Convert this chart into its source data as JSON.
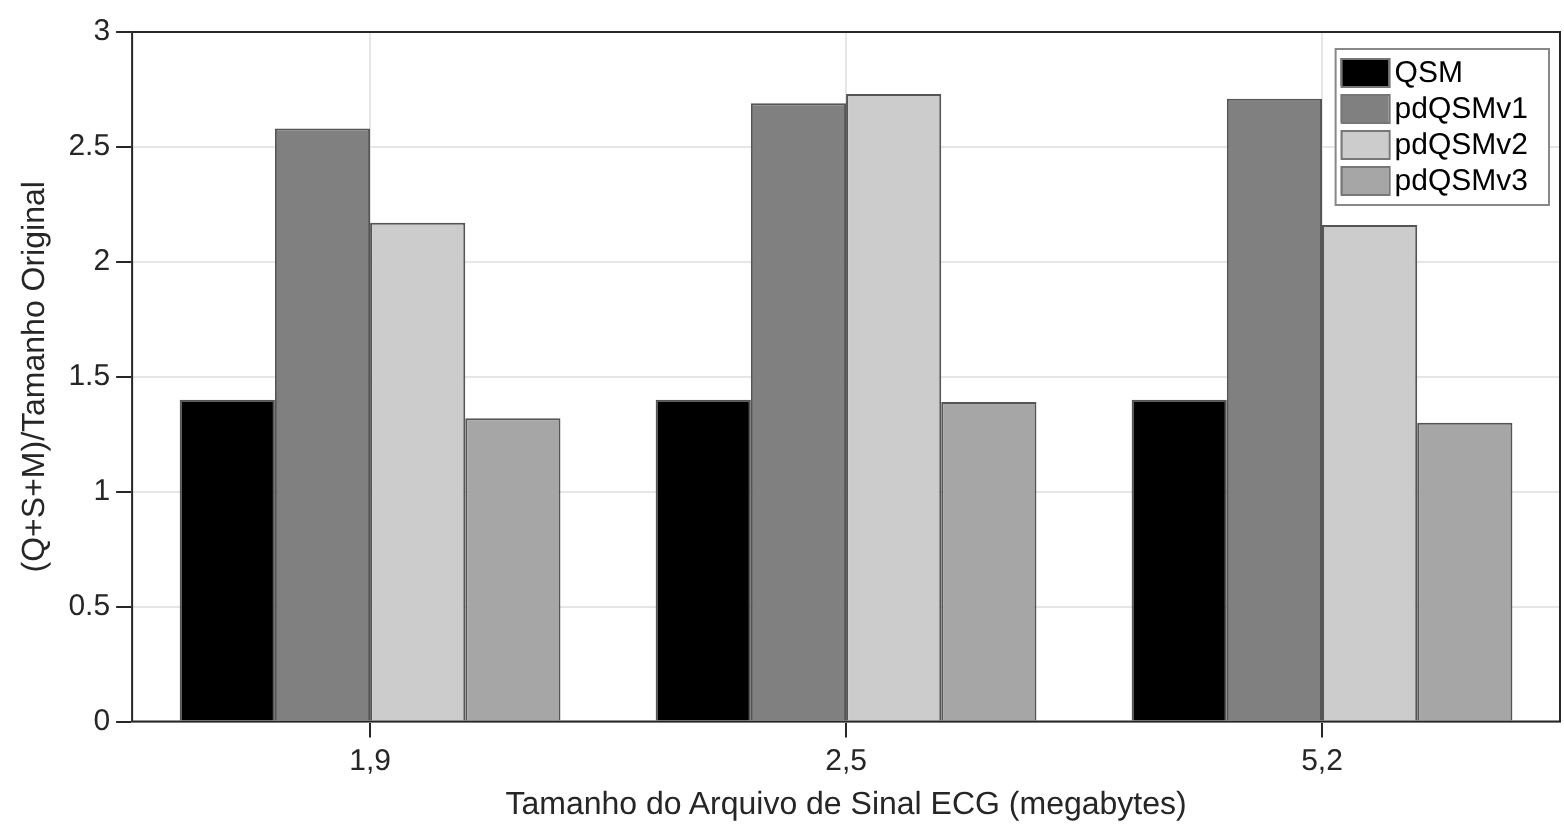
{
  "chart_data": {
    "type": "bar",
    "xlabel": "Tamanho do Arquivo de Sinal ECG (megabytes)",
    "ylabel": "(Q+S+M)/Tamanho Original",
    "categories": [
      "1,9",
      "2,5",
      "5,2"
    ],
    "series": [
      {
        "name": "QSM",
        "color": "#000000",
        "values": [
          1.4,
          1.4,
          1.4
        ]
      },
      {
        "name": "pdQSMv1",
        "color": "#808080",
        "values": [
          2.58,
          2.69,
          2.71
        ]
      },
      {
        "name": "pdQSMv2",
        "color": "#cccccc",
        "values": [
          2.17,
          2.73,
          2.16
        ]
      },
      {
        "name": "pdQSMv3",
        "color": "#a6a6a6",
        "values": [
          1.32,
          1.39,
          1.3
        ]
      }
    ],
    "ylim": [
      0,
      3
    ],
    "yticks": [
      0,
      0.5,
      1,
      1.5,
      2,
      2.5,
      3
    ],
    "grid": true,
    "legend": "top right"
  }
}
